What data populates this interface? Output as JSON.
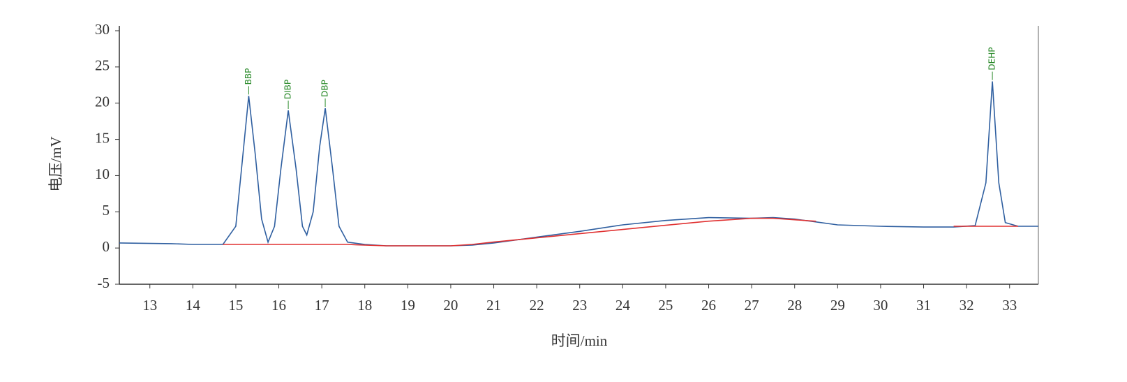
{
  "chart_data": {
    "type": "line",
    "xlabel": "时间/min",
    "ylabel": "电压/mV",
    "x": [
      12.29,
      13.5,
      14,
      14.7,
      15.0,
      15.15,
      15.3,
      15.45,
      15.6,
      15.75,
      15.9,
      16.05,
      16.22,
      16.4,
      16.55,
      16.65,
      16.8,
      16.95,
      17.08,
      17.25,
      17.4,
      17.6,
      18,
      18.5,
      19,
      20,
      20.5,
      21,
      22,
      23,
      24,
      25,
      26,
      27,
      27.5,
      28,
      28.5,
      29,
      30,
      31,
      31.7,
      32.2,
      32.45,
      32.6,
      32.75,
      32.9,
      33.2,
      33.67
    ],
    "series": [
      {
        "name": "signal",
        "color": "#2f5fa0",
        "values": [
          0.7,
          0.6,
          0.5,
          0.5,
          3,
          12,
          21,
          13,
          4,
          0.8,
          3,
          11,
          19,
          11,
          3,
          1.8,
          5,
          14,
          19.3,
          11,
          3,
          0.8,
          0.5,
          0.3,
          0.3,
          0.3,
          0.4,
          0.7,
          1.5,
          2.3,
          3.2,
          3.8,
          4.2,
          4.1,
          4.2,
          4.0,
          3.6,
          3.2,
          3.0,
          2.9,
          2.9,
          3.1,
          9,
          23,
          9,
          3.5,
          3.0,
          3.0
        ]
      },
      {
        "name": "baseline",
        "color": "#e03030",
        "values": [
          null,
          null,
          null,
          0.5,
          0.5,
          0.5,
          0.5,
          0.5,
          0.5,
          0.5,
          0.5,
          0.5,
          0.5,
          0.5,
          0.5,
          0.5,
          0.5,
          0.5,
          0.5,
          0.5,
          0.5,
          0.5,
          0.4,
          0.3,
          0.3,
          0.3,
          0.5,
          0.82,
          1.4,
          1.98,
          2.56,
          3.14,
          3.71,
          4.1,
          4.1,
          3.9,
          3.7,
          null,
          null,
          null,
          3.0,
          3.0,
          3.0,
          3.0,
          3.0,
          3.0,
          3.0,
          null
        ]
      }
    ],
    "annotations": [
      {
        "text": "BBP",
        "x": 15.3
      },
      {
        "text": "DIBP",
        "x": 16.22
      },
      {
        "text": "DBP",
        "x": 17.08
      },
      {
        "text": "DEHP",
        "x": 32.6
      }
    ],
    "xlim": [
      12.29,
      33.67
    ],
    "ylim": [
      -5,
      30
    ],
    "xticks": [
      13,
      14,
      15,
      16,
      17,
      18,
      19,
      20,
      21,
      22,
      23,
      24,
      25,
      26,
      27,
      28,
      29,
      30,
      31,
      32,
      33
    ],
    "yticks": [
      -5,
      0,
      5,
      10,
      15,
      20,
      25,
      30
    ],
    "grid": false
  }
}
